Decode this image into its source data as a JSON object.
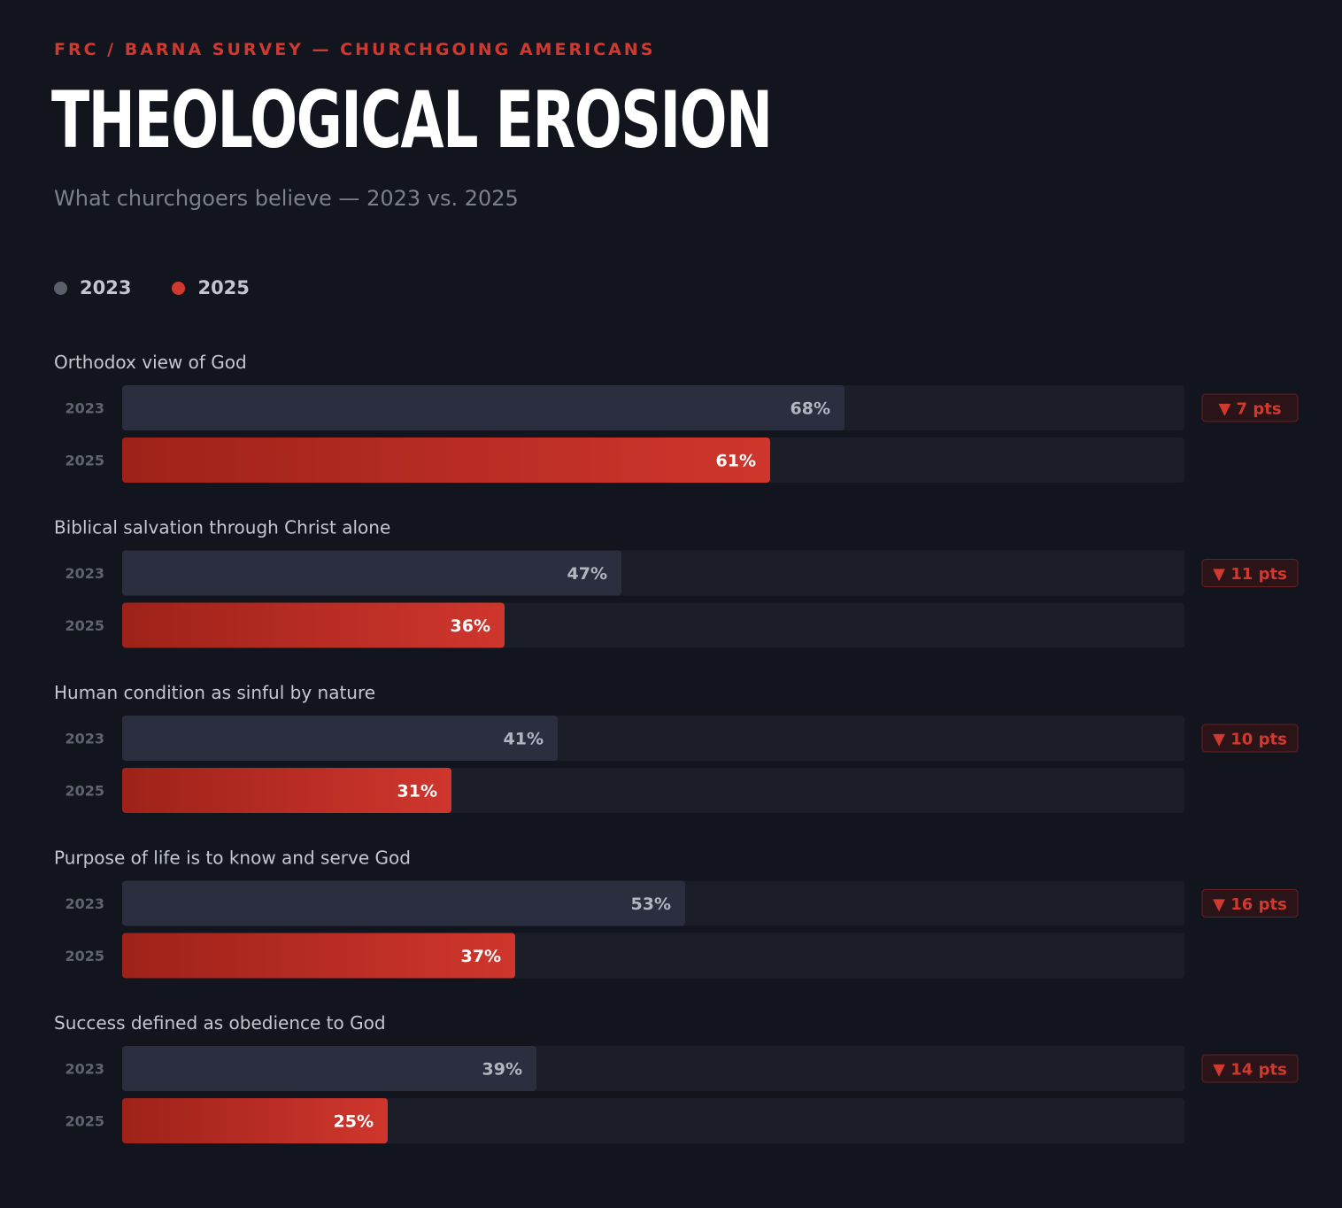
{
  "header": {
    "kicker": "FRC / BARNA SURVEY — CHURCHGOING AMERICANS",
    "title": "THEOLOGICAL EROSION",
    "subtitle": "What churchgoers believe — 2023 vs. 2025"
  },
  "legend": [
    {
      "label": "2023",
      "color": "#5b5f6c"
    },
    {
      "label": "2025",
      "color": "#d0392f"
    }
  ],
  "colors": {
    "background": "#12151d",
    "track": "#1b1d28",
    "bar_2023": "#2b2e3e",
    "bar_2025_start": "#9e2219",
    "bar_2025_end": "#cf362d",
    "accent": "#d0392f",
    "badge_bg": "#2b1417",
    "badge_border": "#6b2024"
  },
  "chart_data": {
    "type": "bar",
    "orientation": "horizontal",
    "unit": "%",
    "ylim": [
      0,
      100
    ],
    "series_names": [
      "2023",
      "2025"
    ],
    "categories": [
      "Orthodox view of God",
      "Biblical salvation through Christ alone",
      "Human condition as sinful by nature",
      "Purpose of life is to know and serve God",
      "Success defined as obedience to God"
    ],
    "series": [
      {
        "name": "2023",
        "values": [
          68,
          47,
          41,
          53,
          39
        ]
      },
      {
        "name": "2025",
        "values": [
          61,
          36,
          31,
          37,
          25
        ]
      }
    ],
    "value_labels": {
      "2023": [
        "68%",
        "47%",
        "41%",
        "53%",
        "39%"
      ],
      "2025": [
        "61%",
        "36%",
        "31%",
        "37%",
        "25%"
      ]
    },
    "change_labels": [
      "▼ 7 pts",
      "▼ 11 pts",
      "▼ 10 pts",
      "▼ 16 pts",
      "▼ 14 pts"
    ]
  }
}
